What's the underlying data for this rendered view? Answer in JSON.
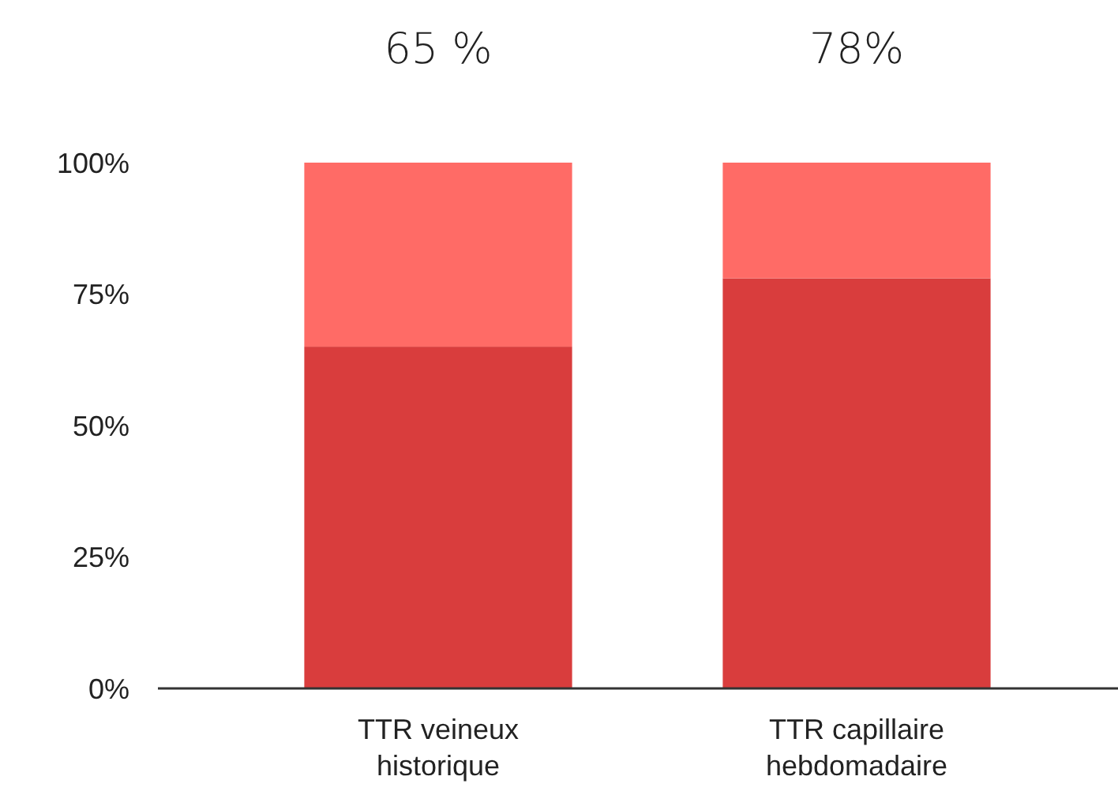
{
  "chart_data": {
    "type": "bar",
    "stacked": true,
    "categories": [
      "TTR veineux historique",
      "TTR capillaire hebdomadaire"
    ],
    "series": [
      {
        "color": "#d93d3d",
        "values": [
          65,
          78
        ],
        "value_labels": [
          "65 %",
          "78%"
        ]
      },
      {
        "color": "#ff6b66",
        "values": [
          35,
          22
        ]
      }
    ],
    "ylim": [
      0,
      100
    ],
    "yticks": [
      {
        "value": 0,
        "label": "0%"
      },
      {
        "value": 25,
        "label": "25%"
      },
      {
        "value": 50,
        "label": "50%"
      },
      {
        "value": 75,
        "label": "75%"
      },
      {
        "value": 100,
        "label": "100%"
      }
    ],
    "grid": false
  }
}
